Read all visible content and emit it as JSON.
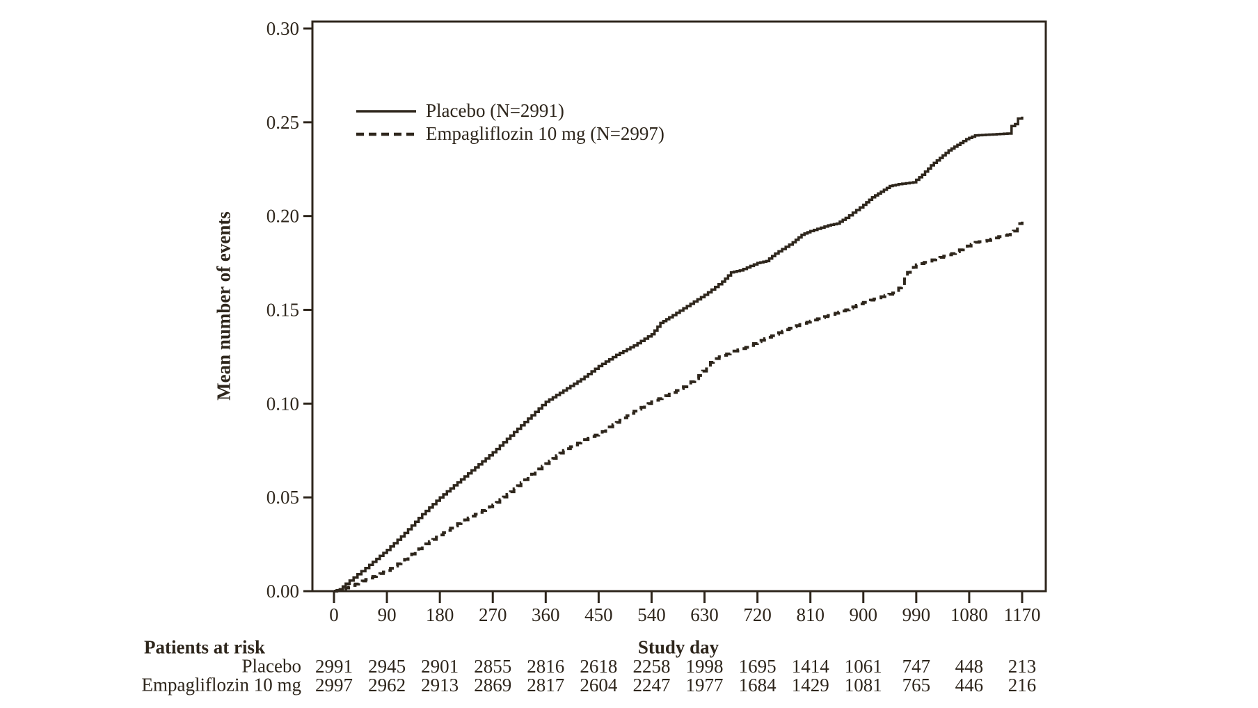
{
  "figure": {
    "background": "#ffffff",
    "ink_color": "#2e261c"
  },
  "chart_data": {
    "type": "line",
    "title": "",
    "xlabel": "Study day",
    "ylabel": "Mean number of events",
    "xlim": [
      0,
      1170
    ],
    "ylim": [
      0.0,
      0.3
    ],
    "grid": false,
    "legend_position": "inside-upper-left",
    "x_ticks": [
      0,
      90,
      180,
      270,
      360,
      450,
      540,
      630,
      720,
      810,
      900,
      990,
      1080,
      1170
    ],
    "x_tick_labels": [
      "0",
      "90",
      "180",
      "270",
      "360",
      "450",
      "540",
      "630",
      "720",
      "810",
      "900",
      "990",
      "1080",
      "1170"
    ],
    "y_ticks": [
      0.0,
      0.05,
      0.1,
      0.15,
      0.2,
      0.25,
      0.3
    ],
    "y_tick_labels": [
      "0.00",
      "0.05",
      "0.10",
      "0.15",
      "0.20",
      "0.25",
      "0.30"
    ],
    "series": [
      {
        "name": "Placebo (N=2991)",
        "style": "solid",
        "points": [
          [
            0,
            0.0
          ],
          [
            10,
            0.001
          ],
          [
            20,
            0.004
          ],
          [
            40,
            0.009
          ],
          [
            60,
            0.014
          ],
          [
            90,
            0.022
          ],
          [
            120,
            0.031
          ],
          [
            150,
            0.041
          ],
          [
            180,
            0.05
          ],
          [
            210,
            0.058
          ],
          [
            240,
            0.066
          ],
          [
            270,
            0.074
          ],
          [
            300,
            0.083
          ],
          [
            330,
            0.092
          ],
          [
            360,
            0.101
          ],
          [
            390,
            0.107
          ],
          [
            420,
            0.113
          ],
          [
            450,
            0.12
          ],
          [
            480,
            0.126
          ],
          [
            510,
            0.131
          ],
          [
            540,
            0.137
          ],
          [
            555,
            0.143
          ],
          [
            570,
            0.146
          ],
          [
            600,
            0.152
          ],
          [
            630,
            0.158
          ],
          [
            660,
            0.165
          ],
          [
            675,
            0.17
          ],
          [
            690,
            0.171
          ],
          [
            720,
            0.175
          ],
          [
            735,
            0.176
          ],
          [
            750,
            0.18
          ],
          [
            780,
            0.186
          ],
          [
            795,
            0.19
          ],
          [
            810,
            0.192
          ],
          [
            840,
            0.195
          ],
          [
            855,
            0.196
          ],
          [
            870,
            0.199
          ],
          [
            900,
            0.206
          ],
          [
            915,
            0.21
          ],
          [
            930,
            0.213
          ],
          [
            945,
            0.216
          ],
          [
            960,
            0.217
          ],
          [
            985,
            0.218
          ],
          [
            1000,
            0.222
          ],
          [
            1015,
            0.227
          ],
          [
            1030,
            0.231
          ],
          [
            1045,
            0.235
          ],
          [
            1060,
            0.238
          ],
          [
            1075,
            0.241
          ],
          [
            1090,
            0.243
          ],
          [
            1145,
            0.244
          ],
          [
            1152,
            0.248
          ],
          [
            1158,
            0.249
          ],
          [
            1163,
            0.252
          ],
          [
            1170,
            0.253
          ]
        ]
      },
      {
        "name": "Empagliflozin 10 mg (N=2997)",
        "style": "dashed",
        "points": [
          [
            0,
            0.0
          ],
          [
            15,
            0.001
          ],
          [
            30,
            0.003
          ],
          [
            60,
            0.007
          ],
          [
            90,
            0.011
          ],
          [
            120,
            0.017
          ],
          [
            150,
            0.024
          ],
          [
            180,
            0.03
          ],
          [
            210,
            0.036
          ],
          [
            240,
            0.041
          ],
          [
            270,
            0.046
          ],
          [
            300,
            0.053
          ],
          [
            330,
            0.061
          ],
          [
            360,
            0.068
          ],
          [
            390,
            0.075
          ],
          [
            420,
            0.08
          ],
          [
            450,
            0.084
          ],
          [
            480,
            0.09
          ],
          [
            510,
            0.096
          ],
          [
            540,
            0.101
          ],
          [
            570,
            0.105
          ],
          [
            600,
            0.11
          ],
          [
            620,
            0.115
          ],
          [
            640,
            0.122
          ],
          [
            655,
            0.125
          ],
          [
            680,
            0.128
          ],
          [
            700,
            0.13
          ],
          [
            720,
            0.133
          ],
          [
            750,
            0.137
          ],
          [
            780,
            0.141
          ],
          [
            810,
            0.144
          ],
          [
            840,
            0.147
          ],
          [
            870,
            0.15
          ],
          [
            900,
            0.154
          ],
          [
            930,
            0.157
          ],
          [
            950,
            0.159
          ],
          [
            965,
            0.163
          ],
          [
            975,
            0.17
          ],
          [
            990,
            0.174
          ],
          [
            1010,
            0.176
          ],
          [
            1030,
            0.178
          ],
          [
            1050,
            0.18
          ],
          [
            1070,
            0.183
          ],
          [
            1090,
            0.186
          ],
          [
            1110,
            0.187
          ],
          [
            1130,
            0.189
          ],
          [
            1145,
            0.19
          ],
          [
            1155,
            0.192
          ],
          [
            1162,
            0.196
          ],
          [
            1170,
            0.197
          ]
        ]
      }
    ]
  },
  "legend": {
    "items": [
      {
        "label": "Placebo (N=2991)",
        "line_style": "solid"
      },
      {
        "label": "Empagliflozin 10 mg (N=2997)",
        "line_style": "dashed"
      }
    ]
  },
  "risk_table": {
    "title": "Patients at risk",
    "x_axis_title": "Study day",
    "rows": [
      {
        "label": "Placebo",
        "values": [
          "2991",
          "2945",
          "2901",
          "2855",
          "2816",
          "2618",
          "2258",
          "1998",
          "1695",
          "1414",
          "1061",
          "747",
          "448",
          "213"
        ]
      },
      {
        "label": "Empagliflozin 10 mg",
        "values": [
          "2997",
          "2962",
          "2913",
          "2869",
          "2817",
          "2604",
          "2247",
          "1977",
          "1684",
          "1429",
          "1081",
          "765",
          "446",
          "216"
        ]
      }
    ]
  }
}
